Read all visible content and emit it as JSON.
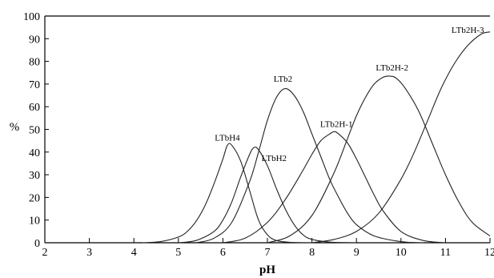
{
  "chart_data": {
    "type": "line",
    "xlabel": "pH",
    "ylabel": "%",
    "xlim": [
      2,
      12
    ],
    "ylim": [
      0,
      100
    ],
    "xticks": [
      2,
      3,
      4,
      5,
      6,
      7,
      8,
      9,
      10,
      11,
      12
    ],
    "yticks": [
      0,
      10,
      20,
      30,
      40,
      50,
      60,
      70,
      80,
      90,
      100
    ],
    "grid": false,
    "series": [
      {
        "name": "LTbH4",
        "x": [
          4.2,
          4.6,
          5.0,
          5.2,
          5.4,
          5.6,
          5.8,
          6.0,
          6.1,
          6.2,
          6.4,
          6.6,
          6.8,
          7.0,
          7.2,
          7.5,
          8.0
        ],
        "y": [
          0,
          0.5,
          2.5,
          5,
          9.5,
          16.5,
          26,
          37,
          43,
          43,
          36,
          23,
          10,
          3.5,
          1,
          0.2,
          0
        ]
      },
      {
        "name": "LTbH2",
        "x": [
          5.0,
          5.4,
          5.8,
          6.0,
          6.2,
          6.4,
          6.6,
          6.7,
          6.8,
          7.0,
          7.2,
          7.4,
          7.6,
          7.8,
          8.0,
          8.4,
          9.0
        ],
        "y": [
          0,
          1,
          5,
          10,
          18,
          29,
          39,
          42,
          41,
          34,
          24,
          15,
          8,
          3.5,
          1.5,
          0.3,
          0
        ]
      },
      {
        "name": "LTb2",
        "x": [
          5.4,
          5.8,
          6.2,
          6.6,
          6.8,
          7.0,
          7.2,
          7.4,
          7.6,
          7.8,
          8.0,
          8.2,
          8.4,
          8.6,
          8.8,
          9.0,
          9.4,
          10.0,
          10.5
        ],
        "y": [
          0,
          2,
          9,
          27,
          40,
          54,
          64,
          68,
          65,
          58,
          48,
          38,
          28,
          20,
          13,
          8,
          3,
          0.5,
          0
        ]
      },
      {
        "name": "LTb2H-1",
        "x": [
          6.0,
          6.5,
          7.0,
          7.4,
          7.8,
          8.0,
          8.2,
          8.4,
          8.5,
          8.6,
          8.8,
          9.0,
          9.2,
          9.4,
          9.6,
          10.0,
          10.5,
          11.0
        ],
        "y": [
          0,
          2,
          9,
          19,
          32,
          39,
          45,
          48,
          49,
          48,
          44,
          37,
          29,
          21,
          14,
          5,
          1,
          0
        ]
      },
      {
        "name": "LTb2H-2",
        "x": [
          7.0,
          7.5,
          8.0,
          8.5,
          8.8,
          9.0,
          9.2,
          9.4,
          9.6,
          9.75,
          9.9,
          10.1,
          10.4,
          10.7,
          11.0,
          11.3,
          11.6,
          12.0
        ],
        "y": [
          0,
          3,
          12,
          31,
          46,
          56,
          64,
          70,
          73,
          73.5,
          72.5,
          68,
          58,
          44,
          30,
          18,
          9,
          3
        ]
      },
      {
        "name": "LTb2H-3",
        "x": [
          8.0,
          8.5,
          9.0,
          9.5,
          10.0,
          10.3,
          10.6,
          10.9,
          11.2,
          11.5,
          11.8,
          12.0
        ],
        "y": [
          0,
          1.5,
          5,
          13,
          28,
          40,
          54,
          68,
          79,
          87,
          92,
          93
        ]
      }
    ],
    "annotations": [
      {
        "text": "LTbH4",
        "x": 6.1,
        "y": 45,
        "anchor": "middle"
      },
      {
        "text": "LTbH2",
        "x": 7.15,
        "y": 36,
        "anchor": "middle"
      },
      {
        "text": "LTb2",
        "x": 7.35,
        "y": 71,
        "anchor": "middle"
      },
      {
        "text": "LTb2H-1",
        "x": 8.55,
        "y": 51,
        "anchor": "middle"
      },
      {
        "text": "LTb2H-2",
        "x": 9.8,
        "y": 76,
        "anchor": "middle"
      },
      {
        "text": "LTb2H-3",
        "x": 11.5,
        "y": 92.5,
        "anchor": "middle"
      }
    ]
  }
}
